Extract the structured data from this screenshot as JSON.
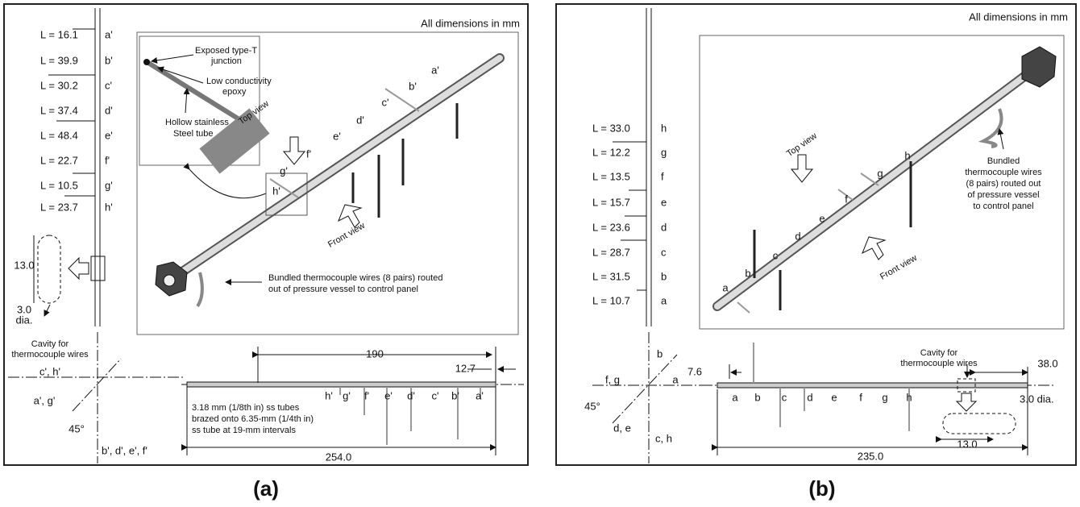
{
  "panels": [
    {
      "caption": "(a)",
      "note": "All dimensions in mm",
      "probes": [
        {
          "length": "L = 16.1",
          "label": "a'"
        },
        {
          "length": "L = 39.9",
          "label": "b'"
        },
        {
          "length": "L = 30.2",
          "label": "c'"
        },
        {
          "length": "L = 37.4",
          "label": "d'"
        },
        {
          "length": "L = 48.4",
          "label": "e'"
        },
        {
          "length": "L = 22.7",
          "label": "f'"
        },
        {
          "length": "L = 10.5",
          "label": "g'"
        },
        {
          "length": "L = 23.7",
          "label": "h'"
        }
      ],
      "tube_labels": [
        "a'",
        "b'",
        "c'",
        "d'",
        "e'",
        "f'",
        "g'",
        "h'"
      ],
      "inset": {
        "junction": [
          "Exposed type-T",
          "junction"
        ],
        "epoxy": [
          "Low conductivity",
          "epoxy"
        ],
        "tube": [
          "Hollow stainless",
          "Steel tube"
        ],
        "top_view": "Top view",
        "front_view": "Front view",
        "wires": [
          "Bundled thermocouple wires (8 pairs) routed",
          "out of pressure vessel to control panel"
        ]
      },
      "cavity": {
        "length": "13.0",
        "diameter": [
          "3.0",
          "dia."
        ],
        "label": [
          "Cavity for",
          "thermocouple wires"
        ]
      },
      "end_view": {
        "top": "c', h'",
        "middle": "a', g'",
        "angle": "45°",
        "bottom": "b', d', e', f'"
      },
      "side_view": {
        "span": "190",
        "offset": "12.7",
        "labels": [
          "h'",
          "g'",
          "f'",
          "e'",
          "d'",
          "c'",
          "b'",
          "a'"
        ],
        "note": [
          "3.18 mm (1/8th in) ss tubes",
          "brazed onto 6.35-mm (1/4th in)",
          "ss tube at 19-mm intervals"
        ],
        "length": "254.0"
      }
    },
    {
      "caption": "(b)",
      "note": "All dimensions in mm",
      "probes": [
        {
          "length": "L = 33.0",
          "label": "h"
        },
        {
          "length": "L = 12.2",
          "label": "g"
        },
        {
          "length": "L = 13.5",
          "label": "f"
        },
        {
          "length": "L = 15.7",
          "label": "e"
        },
        {
          "length": "L = 23.6",
          "label": "d"
        },
        {
          "length": "L = 28.7",
          "label": "c"
        },
        {
          "length": "L = 31.5",
          "label": "b"
        },
        {
          "length": "L = 10.7",
          "label": "a"
        }
      ],
      "tube_labels": [
        "a",
        "b",
        "c",
        "d",
        "e",
        "f",
        "g",
        "h"
      ],
      "inset": {
        "top_view": "Top view",
        "front_view": "Front view",
        "wires": [
          "Bundled",
          "thermocouple wires",
          "(8 pairs) routed out",
          "of pressure vessel",
          "to control panel"
        ]
      },
      "end_view": {
        "top": "b",
        "left": "f, g",
        "right": "a",
        "angle": "45°",
        "lower_left": "d, e",
        "lower_right": "c, h"
      },
      "side_view": {
        "offset": "7.6",
        "cavity": [
          "Cavity for",
          "thermocouple wires"
        ],
        "end": "38.0",
        "labels": [
          "a",
          "b",
          "c",
          "d",
          "e",
          "f",
          "g",
          "h"
        ],
        "diameter": "3.0 dia.",
        "cavity_length": "13.0",
        "length": "235.0"
      }
    }
  ]
}
